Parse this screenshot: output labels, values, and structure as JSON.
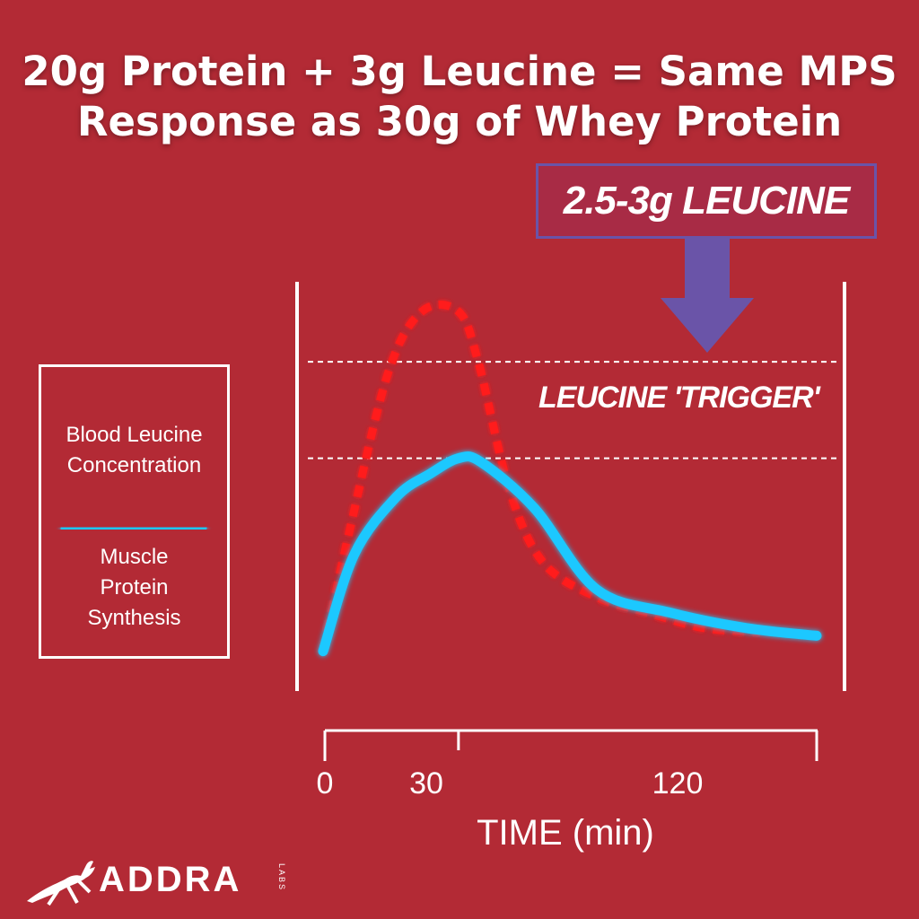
{
  "title": {
    "line1": "20g Protein + 3g Leucine = Same MPS",
    "line2": "Response as 30g of Whey Protein"
  },
  "callout": {
    "text": "2.5-3g LEUCINE",
    "box_color": "#6a54a8"
  },
  "trigger_label": "LEUCINE 'TRIGGER'",
  "legend": {
    "items": [
      {
        "label": "Blood Leucine Concentration",
        "style": "dashed",
        "color": "#ff1a1a"
      },
      {
        "label": "Muscle Protein Synthesis",
        "style": "solid",
        "color": "#1ec8ff"
      }
    ]
  },
  "logo": {
    "name": "ADDRA",
    "sub": "LABS",
    "icon": "gazelle-icon"
  },
  "colors": {
    "background": "#b32a35",
    "arrow": "#6a54a8",
    "leucine": "#ff1a1a",
    "mps": "#1ec8ff"
  },
  "chart_data": {
    "type": "line",
    "xlabel": "TIME (min)",
    "ylabel": "",
    "ticks": [
      {
        "value": 0,
        "label": "0"
      },
      {
        "value": 30,
        "label": "30"
      },
      {
        "value": 120,
        "label": "120"
      }
    ],
    "xlim": [
      0,
      175
    ],
    "ylim": [
      0,
      100
    ],
    "thresholds": [
      {
        "name": "upper",
        "y": 83
      },
      {
        "name": "lower",
        "y": 58
      }
    ],
    "series": [
      {
        "name": "Blood Leucine Concentration",
        "style": "dashed",
        "color": "#ff1a1a",
        "x": [
          0,
          9,
          23,
          35,
          48,
          55,
          66,
          78,
          97,
          115,
          135,
          155
        ],
        "y": [
          8,
          38,
          80,
          96,
          96,
          83,
          50,
          31,
          22,
          18,
          14,
          13
        ]
      },
      {
        "name": "Muscle Protein Synthesis",
        "style": "solid",
        "color": "#1ec8ff",
        "x": [
          0,
          11,
          26,
          38,
          48,
          56,
          75,
          97,
          123,
          150,
          175
        ],
        "y": [
          8,
          33,
          48,
          54,
          58,
          57,
          45,
          24,
          18,
          14,
          12
        ]
      }
    ]
  }
}
